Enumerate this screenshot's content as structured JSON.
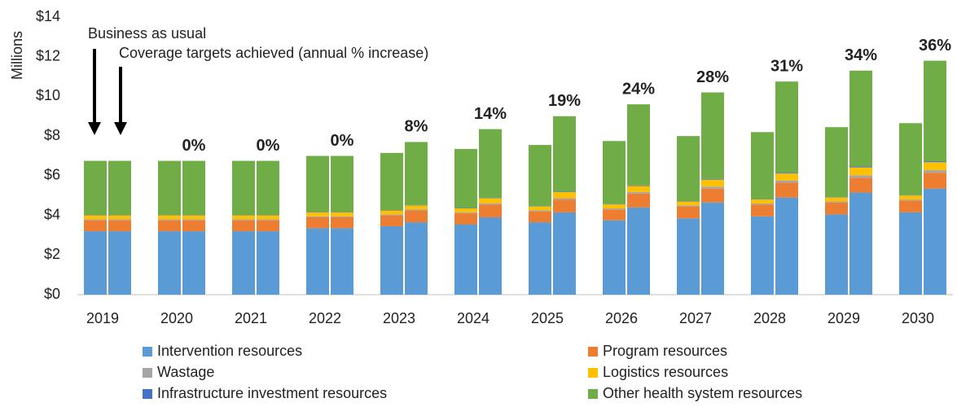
{
  "chart_data": {
    "type": "grouped-stacked-bar",
    "y_label": "Millions",
    "annotations": [
      "Business as usual",
      "Coverage targets achieved (annual % increase)"
    ],
    "categories": [
      "2019",
      "2020",
      "2021",
      "2022",
      "2023",
      "2024",
      "2025",
      "2026",
      "2027",
      "2028",
      "2029",
      "2030"
    ],
    "ylim": [
      0,
      14
    ],
    "yticks": [
      {
        "value": 0,
        "label": "$0"
      },
      {
        "value": 2,
        "label": "$2"
      },
      {
        "value": 4,
        "label": "$4"
      },
      {
        "value": 6,
        "label": "$6"
      },
      {
        "value": 8,
        "label": "$8"
      },
      {
        "value": 10,
        "label": "$10"
      },
      {
        "value": 12,
        "label": "$12"
      },
      {
        "value": 14,
        "label": "$14"
      }
    ],
    "series": [
      {
        "name": "Intervention resources",
        "color": "#5b9bd5",
        "bau": [
          3.2,
          3.2,
          3.2,
          3.35,
          3.45,
          3.55,
          3.65,
          3.75,
          3.85,
          3.95,
          4.05,
          4.15
        ],
        "target": [
          3.2,
          3.2,
          3.2,
          3.35,
          3.65,
          3.9,
          4.15,
          4.4,
          4.65,
          4.9,
          5.15,
          5.35
        ]
      },
      {
        "name": "Program resources",
        "color": "#ed7d31",
        "bau": [
          0.55,
          0.55,
          0.55,
          0.55,
          0.55,
          0.55,
          0.55,
          0.55,
          0.6,
          0.6,
          0.6,
          0.6
        ],
        "target": [
          0.55,
          0.55,
          0.55,
          0.55,
          0.6,
          0.65,
          0.65,
          0.7,
          0.7,
          0.75,
          0.75,
          0.8
        ]
      },
      {
        "name": "Wastage",
        "color": "#a5a5a5",
        "bau": [
          0.05,
          0.05,
          0.05,
          0.05,
          0.05,
          0.05,
          0.05,
          0.05,
          0.05,
          0.05,
          0.05,
          0.05
        ],
        "target": [
          0.05,
          0.05,
          0.05,
          0.05,
          0.05,
          0.06,
          0.07,
          0.08,
          0.1,
          0.11,
          0.12,
          0.13
        ]
      },
      {
        "name": "Logistics resources",
        "color": "#ffc000",
        "bau": [
          0.2,
          0.2,
          0.2,
          0.2,
          0.2,
          0.2,
          0.2,
          0.2,
          0.2,
          0.2,
          0.2,
          0.2
        ],
        "target": [
          0.2,
          0.2,
          0.2,
          0.2,
          0.2,
          0.25,
          0.3,
          0.3,
          0.35,
          0.35,
          0.4,
          0.4
        ]
      },
      {
        "name": "Infrastructure investment resources",
        "color": "#4472c4",
        "bau": [
          0.02,
          0.02,
          0.02,
          0.02,
          0.02,
          0.02,
          0.02,
          0.02,
          0.02,
          0.02,
          0.02,
          0.02
        ],
        "target": [
          0.02,
          0.02,
          0.02,
          0.02,
          0.02,
          0.02,
          0.03,
          0.03,
          0.04,
          0.04,
          0.05,
          0.05
        ]
      },
      {
        "name": "Other health system resources",
        "color": "#70ad47",
        "bau": [
          2.73,
          2.73,
          2.73,
          2.83,
          2.88,
          2.98,
          3.08,
          3.18,
          3.28,
          3.38,
          3.53,
          3.63
        ],
        "target": [
          2.73,
          2.73,
          2.73,
          2.83,
          3.18,
          3.47,
          3.8,
          4.09,
          4.36,
          4.6,
          4.83,
          5.07
        ]
      }
    ],
    "annual_increase": {
      "values": [
        null,
        0,
        0,
        0,
        8,
        14,
        19,
        24,
        28,
        31,
        34,
        36
      ],
      "value_labels": [
        null,
        "0%",
        "0%",
        "0%",
        "8%",
        "14%",
        "19%",
        "24%",
        "28%",
        "31%",
        "34%",
        "36%"
      ]
    }
  }
}
